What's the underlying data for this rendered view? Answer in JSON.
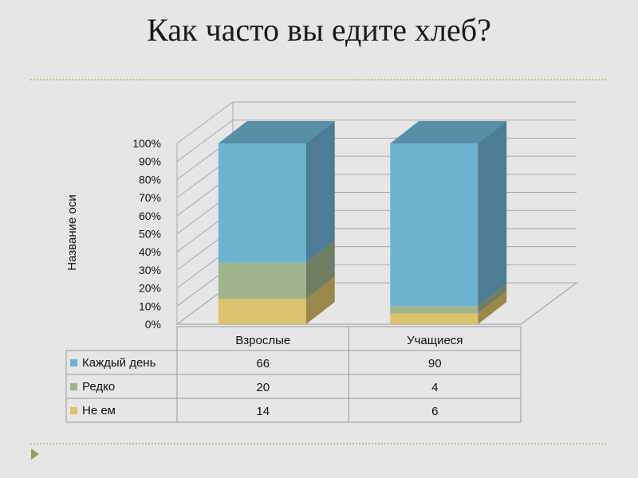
{
  "slide": {
    "title": "Как часто вы едите хлеб?"
  },
  "colors": {
    "every_day": "#6db3d0",
    "rarely": "#9fb48a",
    "never": "#dcc26a",
    "background": "#e6e6e6",
    "accent": "#8ea35a"
  },
  "chart_data": {
    "type": "bar",
    "stacked": "percent",
    "three_d": true,
    "categories": [
      "Взрослые",
      "Учащиеся"
    ],
    "series": [
      {
        "name": "Каждый день",
        "values": [
          66,
          90
        ],
        "color": "#6db3d0"
      },
      {
        "name": "Редко",
        "values": [
          20,
          4
        ],
        "color": "#9fb48a"
      },
      {
        "name": "Не ем",
        "values": [
          14,
          6
        ],
        "color": "#dcc26a"
      }
    ],
    "ylabel": "Название оси",
    "ylim": [
      0,
      100
    ],
    "yticks": [
      "0%",
      "10%",
      "20%",
      "30%",
      "40%",
      "50%",
      "60%",
      "70%",
      "80%",
      "90%",
      "100%"
    ],
    "grid": true,
    "data_table": true
  }
}
